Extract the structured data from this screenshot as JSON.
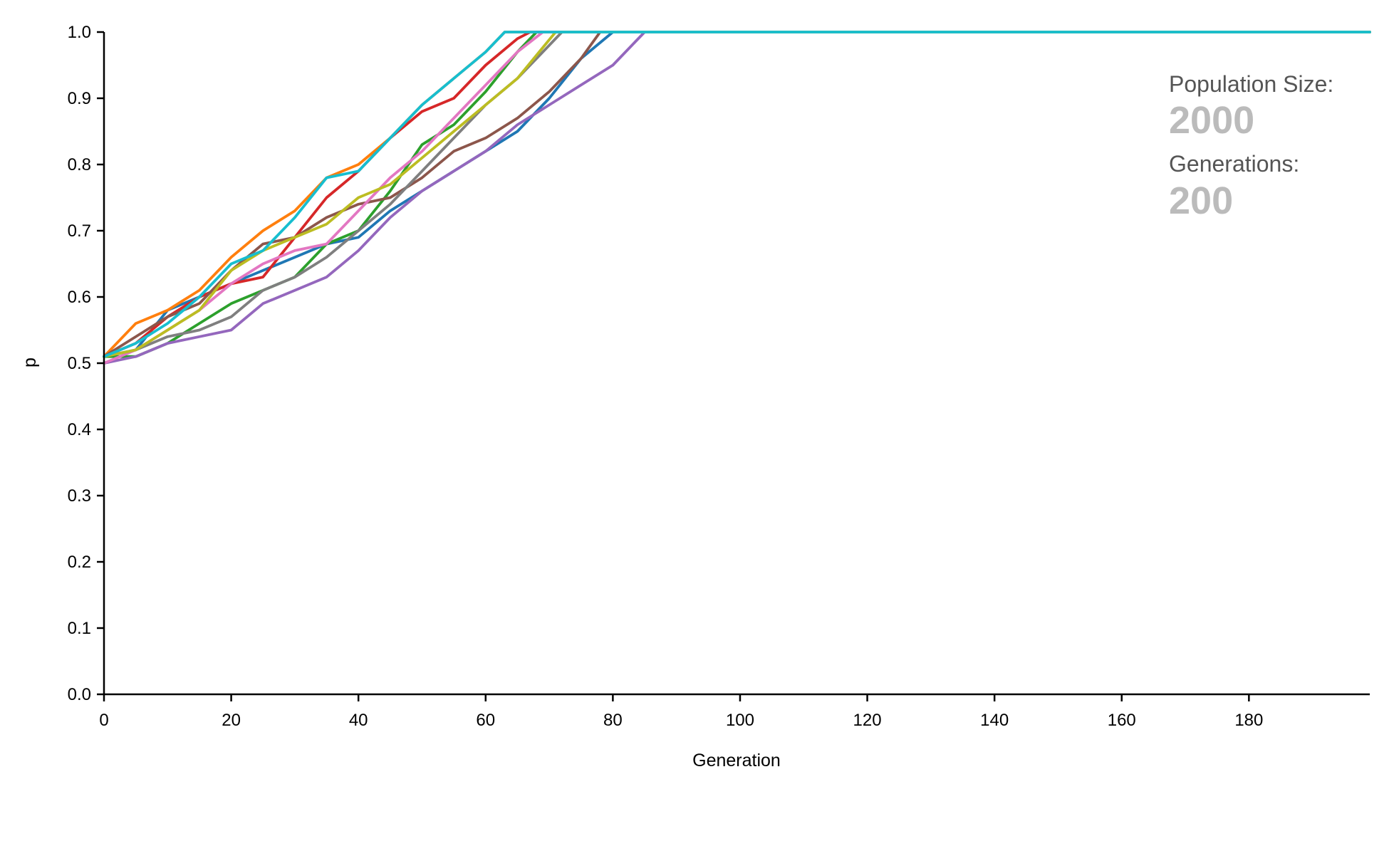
{
  "chart_data": {
    "type": "line",
    "title": "",
    "xlabel": "Generation",
    "ylabel": "p",
    "xlim": [
      0,
      199
    ],
    "ylim": [
      0,
      1
    ],
    "grid": false,
    "x_ticks": [
      0,
      20,
      40,
      60,
      80,
      100,
      120,
      140,
      160,
      180
    ],
    "y_ticks": [
      0.0,
      0.1,
      0.2,
      0.3,
      0.4,
      0.5,
      0.6,
      0.7,
      0.8,
      0.9,
      1.0
    ],
    "series": [
      {
        "color": "#1f77b4",
        "x": [
          0,
          5,
          10,
          15,
          20,
          25,
          30,
          35,
          40,
          45,
          50,
          55,
          60,
          65,
          70,
          75,
          80,
          85,
          199
        ],
        "y": [
          0.51,
          0.52,
          0.58,
          0.6,
          0.62,
          0.64,
          0.66,
          0.68,
          0.69,
          0.73,
          0.76,
          0.79,
          0.82,
          0.85,
          0.9,
          0.96,
          1.0,
          1.0,
          1.0
        ]
      },
      {
        "color": "#ff7f0e",
        "x": [
          0,
          5,
          10,
          15,
          20,
          25,
          30,
          35,
          40,
          45,
          50,
          55,
          60,
          63,
          199
        ],
        "y": [
          0.51,
          0.56,
          0.58,
          0.61,
          0.66,
          0.7,
          0.73,
          0.78,
          0.8,
          0.84,
          0.89,
          0.93,
          0.97,
          1.0,
          1.0
        ]
      },
      {
        "color": "#2ca02c",
        "x": [
          0,
          5,
          10,
          15,
          20,
          25,
          30,
          35,
          40,
          45,
          50,
          55,
          60,
          65,
          68,
          199
        ],
        "y": [
          0.51,
          0.51,
          0.53,
          0.56,
          0.59,
          0.61,
          0.63,
          0.68,
          0.7,
          0.76,
          0.83,
          0.86,
          0.91,
          0.97,
          1.0,
          1.0
        ]
      },
      {
        "color": "#d62728",
        "x": [
          0,
          5,
          10,
          15,
          20,
          25,
          30,
          35,
          40,
          45,
          50,
          55,
          60,
          65,
          67,
          199
        ],
        "y": [
          0.51,
          0.53,
          0.57,
          0.6,
          0.62,
          0.63,
          0.69,
          0.75,
          0.79,
          0.84,
          0.88,
          0.9,
          0.95,
          0.99,
          1.0,
          1.0
        ]
      },
      {
        "color": "#9467bd",
        "x": [
          0,
          5,
          10,
          15,
          20,
          25,
          30,
          35,
          40,
          45,
          50,
          55,
          60,
          65,
          70,
          75,
          80,
          85,
          199
        ],
        "y": [
          0.5,
          0.51,
          0.53,
          0.54,
          0.55,
          0.59,
          0.61,
          0.63,
          0.67,
          0.72,
          0.76,
          0.79,
          0.82,
          0.86,
          0.89,
          0.92,
          0.95,
          1.0,
          1.0
        ]
      },
      {
        "color": "#8c564b",
        "x": [
          0,
          5,
          10,
          15,
          20,
          25,
          30,
          35,
          40,
          45,
          50,
          55,
          60,
          65,
          70,
          75,
          78,
          199
        ],
        "y": [
          0.51,
          0.54,
          0.57,
          0.59,
          0.64,
          0.68,
          0.69,
          0.72,
          0.74,
          0.75,
          0.78,
          0.82,
          0.84,
          0.87,
          0.91,
          0.96,
          1.0,
          1.0
        ]
      },
      {
        "color": "#e377c2",
        "x": [
          0,
          5,
          10,
          15,
          20,
          25,
          30,
          35,
          40,
          45,
          50,
          55,
          60,
          65,
          69,
          199
        ],
        "y": [
          0.5,
          0.52,
          0.55,
          0.58,
          0.62,
          0.65,
          0.67,
          0.68,
          0.73,
          0.78,
          0.82,
          0.87,
          0.92,
          0.97,
          1.0,
          1.0
        ]
      },
      {
        "color": "#7f7f7f",
        "x": [
          0,
          5,
          10,
          15,
          20,
          25,
          30,
          35,
          40,
          45,
          50,
          55,
          60,
          65,
          70,
          72,
          199
        ],
        "y": [
          0.51,
          0.52,
          0.54,
          0.55,
          0.57,
          0.61,
          0.63,
          0.66,
          0.7,
          0.74,
          0.79,
          0.84,
          0.89,
          0.93,
          0.98,
          1.0,
          1.0
        ]
      },
      {
        "color": "#bcbd22",
        "x": [
          0,
          5,
          10,
          15,
          20,
          25,
          30,
          35,
          40,
          45,
          50,
          55,
          60,
          65,
          71,
          199
        ],
        "y": [
          0.51,
          0.52,
          0.55,
          0.58,
          0.64,
          0.67,
          0.69,
          0.71,
          0.75,
          0.77,
          0.81,
          0.85,
          0.89,
          0.93,
          1.0,
          1.0
        ]
      },
      {
        "color": "#17becf",
        "x": [
          0,
          5,
          10,
          15,
          20,
          25,
          30,
          35,
          40,
          45,
          50,
          55,
          60,
          63,
          199
        ],
        "y": [
          0.51,
          0.53,
          0.56,
          0.6,
          0.65,
          0.67,
          0.72,
          0.78,
          0.79,
          0.84,
          0.89,
          0.93,
          0.97,
          1.0,
          1.0
        ]
      }
    ]
  },
  "info": {
    "population_label": "Population Size:",
    "population_value": "2000",
    "generations_label": "Generations:",
    "generations_value": "200"
  }
}
